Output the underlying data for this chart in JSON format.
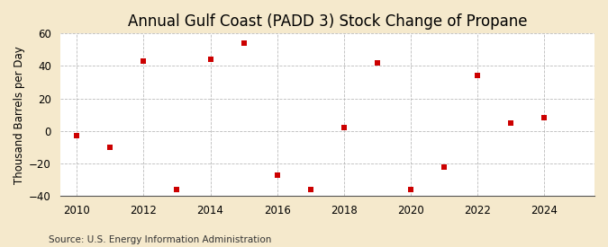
{
  "title": "Annual Gulf Coast (PADD 3) Stock Change of Propane",
  "ylabel": "Thousand Barrels per Day",
  "source": "Source: U.S. Energy Information Administration",
  "figure_bg": "#f5e9cc",
  "plot_bg": "#ffffff",
  "marker_color": "#cc0000",
  "grid_color": "#aaaaaa",
  "years": [
    2010,
    2011,
    2012,
    2013,
    2014,
    2015,
    2016,
    2017,
    2018,
    2019,
    2020,
    2021,
    2022,
    2023,
    2024
  ],
  "values": [
    -3,
    -10,
    43,
    -36,
    44,
    54,
    -27,
    -36,
    2,
    42,
    -36,
    -22,
    34,
    5,
    8
  ],
  "xlim": [
    2009.5,
    2025.5
  ],
  "ylim": [
    -40,
    60
  ],
  "yticks": [
    -40,
    -20,
    0,
    20,
    40,
    60
  ],
  "xticks": [
    2010,
    2012,
    2014,
    2016,
    2018,
    2020,
    2022,
    2024
  ],
  "title_fontsize": 12,
  "label_fontsize": 8.5,
  "tick_fontsize": 8.5,
  "source_fontsize": 7.5
}
